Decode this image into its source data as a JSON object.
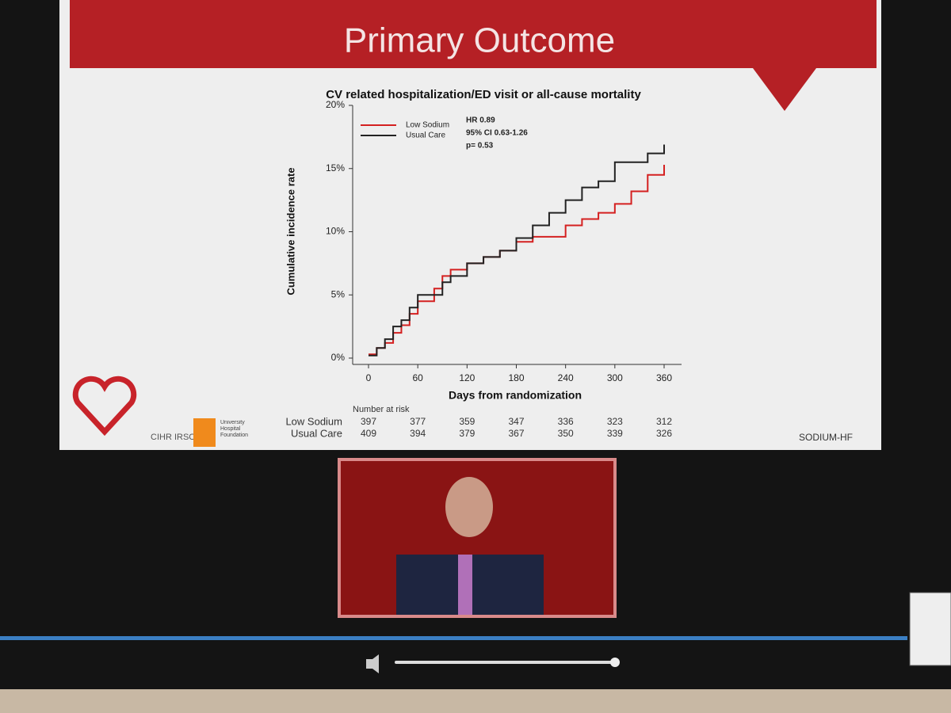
{
  "slide_title": "Primary Outcome",
  "chart_data": {
    "type": "step",
    "title": "CV related hospitalization/ED visit or all-cause mortality",
    "x_label": "Days from randomization",
    "y_label": "Cumulative incidence rate",
    "xlim": [
      0,
      360
    ],
    "ylim": [
      0,
      20
    ],
    "xticks": [
      0,
      60,
      120,
      180,
      240,
      300,
      360
    ],
    "yticks": [
      {
        "value": 0,
        "label": "0%"
      },
      {
        "value": 5,
        "label": "5%"
      },
      {
        "value": 10,
        "label": "10%"
      },
      {
        "value": 15,
        "label": "15%"
      },
      {
        "value": 20,
        "label": "20%"
      }
    ],
    "legend": "upper left",
    "annotations": [
      "HR 0.89",
      "95% CI 0.63-1.26",
      "p= 0.53"
    ],
    "x": [
      0,
      10,
      20,
      30,
      40,
      50,
      60,
      80,
      90,
      100,
      120,
      140,
      160,
      180,
      200,
      220,
      240,
      260,
      280,
      300,
      320,
      340,
      360
    ],
    "series": [
      {
        "name": "Low Sodium",
        "color": "#d42020",
        "values": [
          0.3,
          0.8,
          1.2,
          2.0,
          2.6,
          3.5,
          4.5,
          5.5,
          6.5,
          7.0,
          7.5,
          8.0,
          8.5,
          9.2,
          9.6,
          9.6,
          10.5,
          11.0,
          11.5,
          12.2,
          13.2,
          14.5,
          15.3
        ]
      },
      {
        "name": "Usual Care",
        "color": "#222222",
        "values": [
          0.2,
          0.8,
          1.5,
          2.5,
          3.0,
          4.0,
          5.0,
          5.0,
          6.0,
          6.5,
          7.5,
          8.0,
          8.5,
          9.5,
          10.5,
          11.5,
          12.5,
          13.5,
          14.0,
          15.5,
          15.5,
          16.2,
          16.9
        ]
      }
    ]
  },
  "risk_table": {
    "title": "Number at risk",
    "rows": [
      {
        "name": "Low Sodium",
        "values": [
          397,
          377,
          359,
          347,
          336,
          323,
          312
        ]
      },
      {
        "name": "Usual Care",
        "values": [
          409,
          394,
          379,
          367,
          350,
          339,
          326
        ]
      }
    ]
  },
  "logos": {
    "cihr": "CIHR IRSC",
    "foundation": "University Hospital Foundation",
    "study": "SODIUM-HF"
  }
}
